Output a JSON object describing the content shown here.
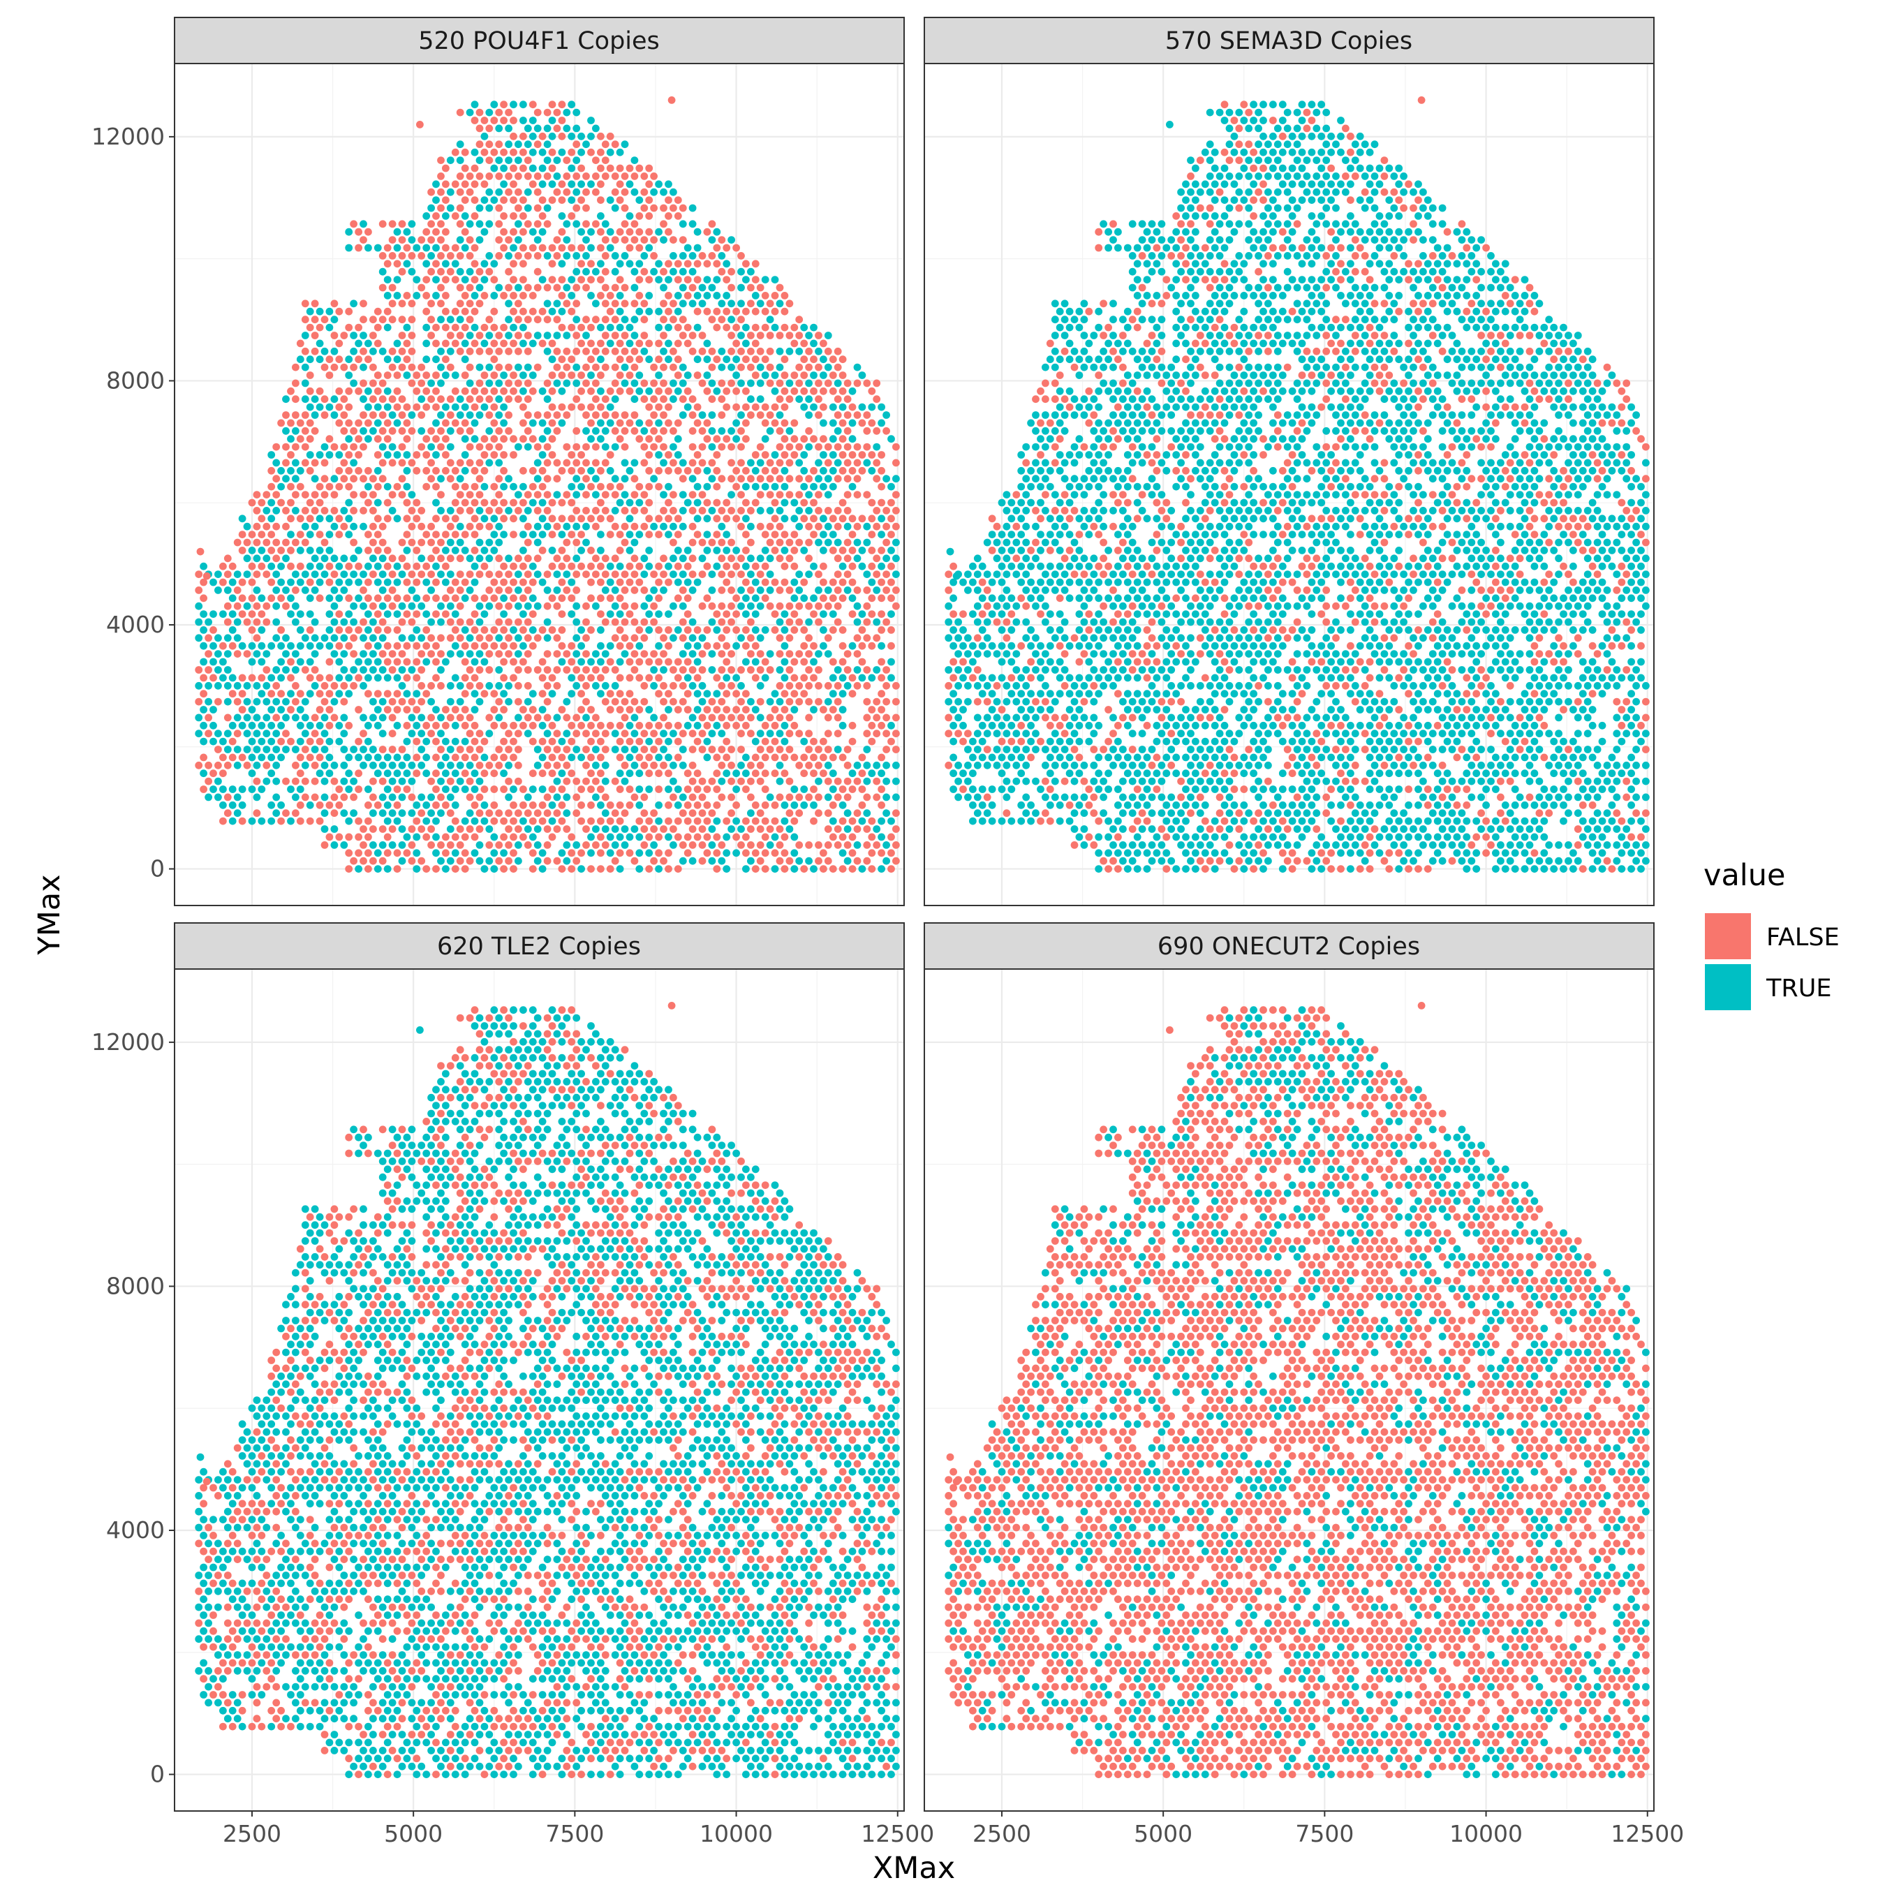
{
  "chart_data": {
    "type": "scatter",
    "xlabel": "XMax",
    "ylabel": "YMax",
    "xlim": [
      1300,
      12600
    ],
    "ylim": [
      -600,
      13200
    ],
    "x_ticks": [
      2500,
      5000,
      7500,
      10000,
      12500
    ],
    "x_tick_labels": [
      "2500",
      "5000",
      "7500",
      "10000",
      "12500"
    ],
    "y_ticks": [
      0,
      4000,
      8000,
      12000
    ],
    "y_tick_labels": [
      "0",
      "4000",
      "8000",
      "12000"
    ],
    "grid": true,
    "legend": {
      "title": "value",
      "position": "right",
      "entries": [
        {
          "label": "FALSE",
          "color": "#F8766D"
        },
        {
          "label": "TRUE",
          "color": "#00BFC4"
        }
      ]
    },
    "point_colors": {
      "FALSE": "#F8766D",
      "TRUE": "#00BFC4"
    },
    "panels": [
      {
        "title": "520 POU4F1 Copies",
        "true_fraction": 0.35,
        "true_regions": [
          [
            2600,
            3000,
            2200
          ],
          [
            3800,
            4500,
            1600
          ],
          [
            2400,
            1600,
            1400
          ],
          [
            4800,
            1400,
            1500
          ]
        ]
      },
      {
        "title": "570 SEMA3D Copies",
        "true_fraction": 0.78,
        "true_regions": []
      },
      {
        "title": "620 TLE2 Copies",
        "true_fraction": 0.62,
        "true_regions": [
          [
            8200,
            5600,
            1800
          ],
          [
            7500,
            10500,
            1500
          ],
          [
            11500,
            800,
            1500
          ]
        ]
      },
      {
        "title": "690 ONECUT2 Copies",
        "true_fraction": 0.25,
        "true_regions": [
          [
            7200,
            11800,
            1400
          ],
          [
            9500,
            10000,
            1400
          ]
        ]
      }
    ],
    "tissue_outline": {
      "y_min": 0,
      "y_max": 12600,
      "x_right_max": 12500,
      "spot_spacing": 150
    }
  }
}
